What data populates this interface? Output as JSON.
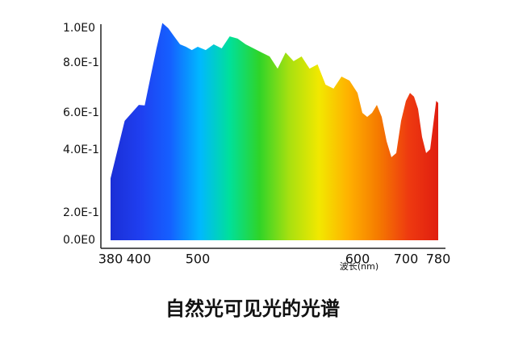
{
  "chart_data": {
    "type": "area",
    "title": "自然光可见光的光谱",
    "x_label": "波长(nm)",
    "x": [
      380,
      390,
      400,
      410,
      420,
      430,
      440,
      450,
      460,
      470,
      480,
      490,
      500,
      505,
      510,
      515,
      520,
      525,
      530,
      540,
      545,
      550,
      555,
      560,
      565,
      570,
      575,
      580,
      585,
      590,
      595,
      600,
      610,
      620,
      630,
      640,
      650,
      660,
      670,
      680,
      690,
      700,
      710,
      720,
      730,
      740,
      750,
      760,
      770,
      775,
      780
    ],
    "values": [
      0.31,
      0.557,
      0.632,
      0.63,
      0.745,
      0.884,
      1.03,
      1.0,
      0.953,
      0.907,
      0.893,
      0.874,
      0.893,
      0.874,
      0.907,
      0.884,
      0.953,
      0.94,
      0.907,
      0.86,
      0.837,
      0.777,
      0.86,
      0.81,
      0.837,
      0.777,
      0.794,
      0.713,
      0.697,
      0.745,
      0.729,
      0.68,
      0.6,
      0.578,
      0.6,
      0.632,
      0.578,
      0.448,
      0.377,
      0.39,
      0.557,
      0.648,
      0.68,
      0.665,
      0.616,
      0.47,
      0.39,
      0.404,
      0.578,
      0.648,
      0.64
    ],
    "colors": [
      "#1b2fd6",
      "#1f3ff0",
      "#1560ff",
      "#00b8ff",
      "#00e09a",
      "#2fd428",
      "#a8e010",
      "#f2e800",
      "#ffb000",
      "#f57a00",
      "#ee3a10",
      "#e01e10"
    ],
    "xlim": [
      380,
      780
    ],
    "ylim": [
      0,
      1
    ],
    "xticks": [
      380,
      400,
      500,
      600,
      700,
      780
    ],
    "yticks": [
      {
        "value": 0,
        "label": "0.0E0"
      },
      {
        "value": 0.2,
        "label": "2.0E-1"
      },
      {
        "value": 0.4,
        "label": "4.0E-1"
      },
      {
        "value": 0.6,
        "label": "6.0E-1"
      },
      {
        "value": 0.8,
        "label": "8.0E-1"
      },
      {
        "value": 1.0,
        "label": "1.0E0"
      }
    ]
  }
}
